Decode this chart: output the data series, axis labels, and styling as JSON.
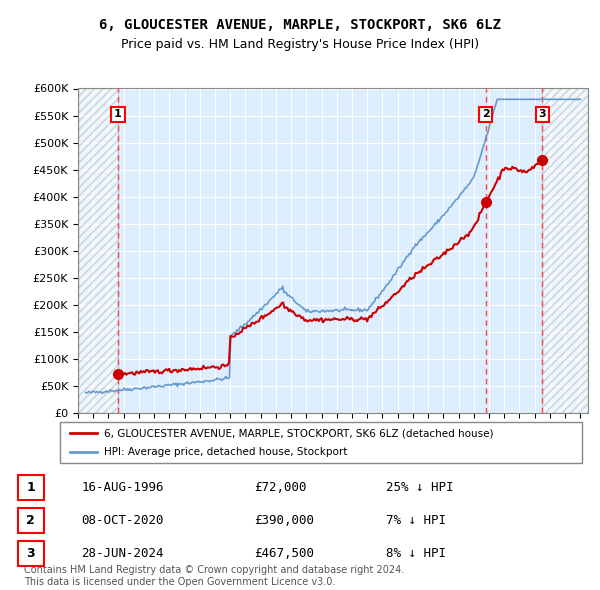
{
  "title": "6, GLOUCESTER AVENUE, MARPLE, STOCKPORT, SK6 6LZ",
  "subtitle": "Price paid vs. HM Land Registry's House Price Index (HPI)",
  "ylabel": "",
  "xlabel": "",
  "ylim": [
    0,
    600000
  ],
  "yticks": [
    0,
    50000,
    100000,
    150000,
    200000,
    250000,
    300000,
    350000,
    400000,
    450000,
    500000,
    550000,
    600000
  ],
  "ytick_labels": [
    "£0",
    "£50K",
    "£100K",
    "£150K",
    "£200K",
    "£250K",
    "£300K",
    "£350K",
    "£400K",
    "£450K",
    "£500K",
    "£550K",
    "£600K"
  ],
  "xlim_start": 1994.0,
  "xlim_end": 2027.5,
  "sale_dates": [
    1996.62,
    2020.77,
    2024.49
  ],
  "sale_prices": [
    72000,
    390000,
    467500
  ],
  "sale_labels": [
    "1",
    "2",
    "3"
  ],
  "sale_info": [
    {
      "label": "1",
      "date": "16-AUG-1996",
      "price": "£72,000",
      "hpi": "25% ↓ HPI"
    },
    {
      "label": "2",
      "date": "08-OCT-2020",
      "price": "£390,000",
      "hpi": "7% ↓ HPI"
    },
    {
      "label": "3",
      "date": "28-JUN-2024",
      "price": "£467,500",
      "hpi": "8% ↓ HPI"
    }
  ],
  "red_line_color": "#cc0000",
  "blue_line_color": "#6699cc",
  "hatch_color": "#aaaaaa",
  "bg_color": "#ddeeff",
  "grid_color": "#ffffff",
  "dashed_line_color": "#ff4444",
  "legend_label_red": "6, GLOUCESTER AVENUE, MARPLE, STOCKPORT, SK6 6LZ (detached house)",
  "legend_label_blue": "HPI: Average price, detached house, Stockport",
  "footer": "Contains HM Land Registry data © Crown copyright and database right 2024.\nThis data is licensed under the Open Government Licence v3.0."
}
